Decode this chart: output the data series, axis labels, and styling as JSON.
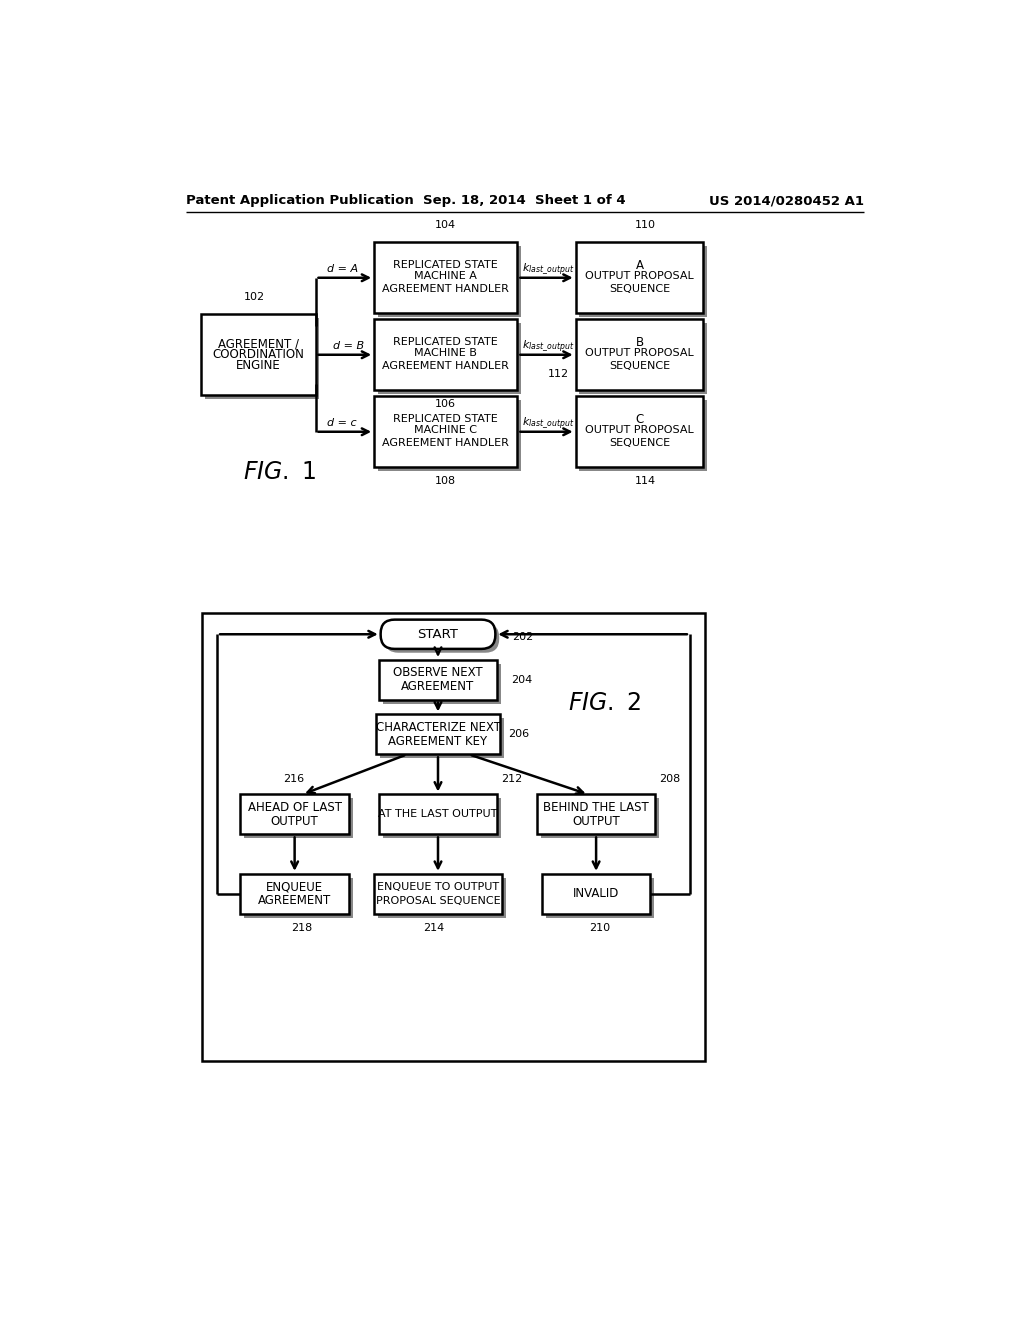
{
  "header_left": "Patent Application Publication",
  "header_mid": "Sep. 18, 2014  Sheet 1 of 4",
  "header_right": "US 2014/0280452 A1",
  "bg_color": "#ffffff",
  "fig1_label": "FIG. 1",
  "fig2_label": "FIG. 2"
}
